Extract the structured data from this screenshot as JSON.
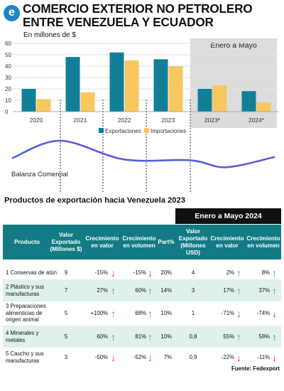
{
  "header": {
    "logo": "e",
    "title_line1": "COMERCIO EXTERIOR NO PETROLERO",
    "title_line2": "ENTRE VENEZUELA Y ECUADOR",
    "unit": "En millones de $"
  },
  "chart_data": [
    {
      "type": "bar",
      "categories": [
        "2020",
        "2021",
        "2022",
        "2023",
        "2023*",
        "2024*"
      ],
      "series": [
        {
          "name": "Exportaciones",
          "values": [
            20,
            48,
            52,
            46,
            20,
            18
          ],
          "color": "#127f98"
        },
        {
          "name": "Importaciones",
          "values": [
            11,
            17,
            45,
            40,
            23,
            8
          ],
          "color": "#f7c85f"
        }
      ],
      "ylim": [
        0,
        60
      ],
      "yticks": [
        0,
        10,
        20,
        30,
        40,
        50,
        60
      ],
      "shaded_region": {
        "label": "Enero a Mayo",
        "categories": [
          "2023*",
          "2024*"
        ]
      },
      "legend_position": "bottom-center",
      "grid": true
    },
    {
      "type": "line",
      "label": "Balanza Comercial",
      "trend": [
        -9,
        -31,
        -7,
        -6,
        3,
        -10
      ],
      "color": "#5b5ddb"
    }
  ],
  "table": {
    "section_title": "Productos de exportación hacia Venezuela 2023",
    "period_header": "Enero a Mayo 2024",
    "columns": [
      "Producto",
      "Valor Exportado (Millones $)",
      "Crecimiento en valor",
      "Crecimiento en volumen",
      "Part%",
      "Valor Exportado (Millones USD)",
      "Crecimiento en valor",
      "Crecimiento en volumen"
    ],
    "rows": [
      {
        "producto": "1 Conservas de atún",
        "valor": "9",
        "cval": "-15%",
        "cval_dir": "down",
        "cvol": "-15%",
        "cvol_dir": "down",
        "part": "20%",
        "valor24": "4",
        "cval24": "2%",
        "cval24_dir": "up",
        "cvol24": "8%",
        "cvol24_dir": "up"
      },
      {
        "producto": "2 Plástico y sus manufacturas",
        "valor": "7",
        "cval": "27%",
        "cval_dir": "up",
        "cvol": "60%",
        "cvol_dir": "up",
        "part": "14%",
        "valor24": "3",
        "cval24": "17%",
        "cval24_dir": "up",
        "cvol24": "37%",
        "cvol24_dir": "up"
      },
      {
        "producto": "3 Preparaciones alimenticias de origen animal",
        "valor": "5",
        "cval": "+100%",
        "cval_dir": "up",
        "cvol": "68%",
        "cvol_dir": "up",
        "part": "10%",
        "valor24": "1",
        "cval24": "-71%",
        "cval24_dir": "down",
        "cvol24": "-74%",
        "cvol24_dir": "down"
      },
      {
        "producto": "4 Minerales y metales",
        "valor": "5",
        "cval": "60%",
        "cval_dir": "up",
        "cvol": "81%",
        "cvol_dir": "up",
        "part": "10%",
        "valor24": "0,8",
        "cval24": "55%",
        "cval24_dir": "up",
        "cvol24": "58%",
        "cvol24_dir": "up"
      },
      {
        "producto": "5 Caucho y sus manufacturas",
        "valor": "3",
        "cval": "-50%",
        "cval_dir": "down",
        "cvol": "-52%",
        "cvol_dir": "down",
        "part": "7%",
        "valor24": "0,9",
        "cval24": "-22%",
        "cval24_dir": "down",
        "cvol24": "-11%",
        "cvol24_dir": "down"
      }
    ],
    "source": "Fuente: Fedexport"
  },
  "icons": {
    "up": "arrow-up-icon",
    "down": "arrow-down-icon"
  },
  "arrow_glyphs": {
    "up": "↑",
    "down": "↓"
  }
}
